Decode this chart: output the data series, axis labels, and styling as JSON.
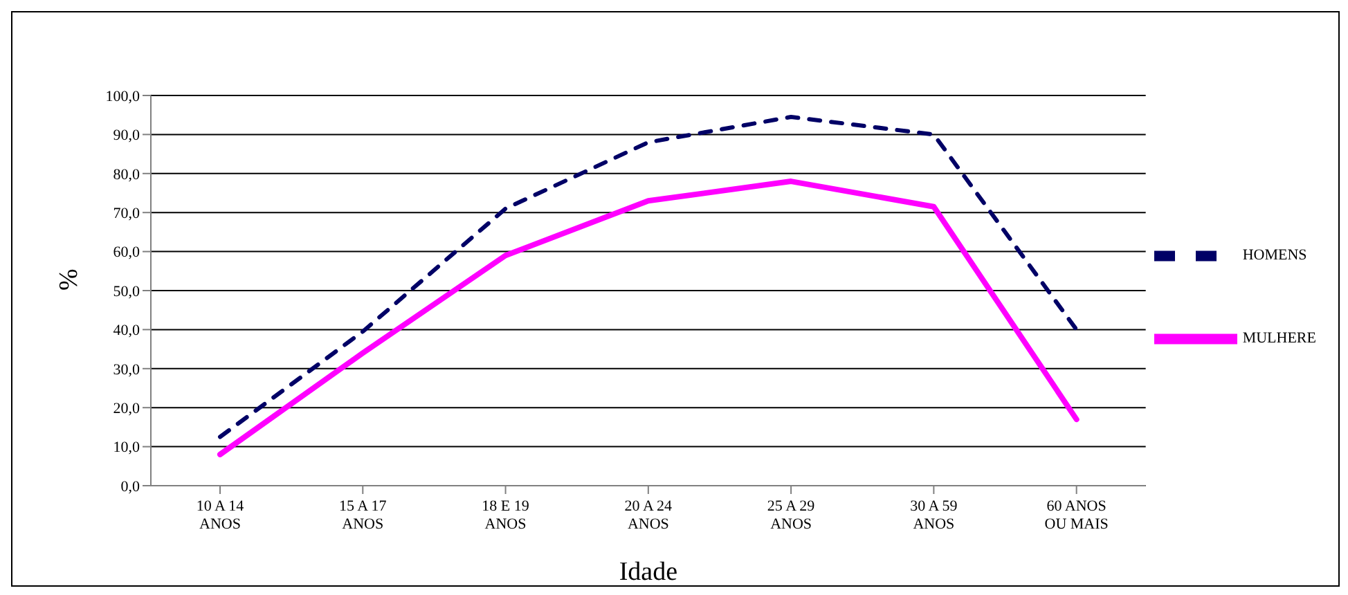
{
  "chart_data": {
    "type": "line",
    "xlabel": "Idade",
    "ylabel": "%",
    "categories": [
      "10 A 14\nANOS",
      "15 A 17\nANOS",
      "18 E 19\nANOS",
      "20 A 24\nANOS",
      "25 A 29\nANOS",
      "30 A 59\nANOS",
      "60 ANOS\nOU MAIS"
    ],
    "series": [
      {
        "name": "HOMENS",
        "color": "#000066",
        "line_style": "dashed",
        "values": [
          12.5,
          39.5,
          71,
          88,
          94.5,
          90,
          40
        ]
      },
      {
        "name": "MULHERE",
        "color": "#ff00ff",
        "line_style": "solid",
        "values": [
          8,
          34,
          59,
          73,
          78,
          71.5,
          17
        ]
      }
    ],
    "ylim": [
      0,
      100
    ],
    "yticks": [
      {
        "value": 0,
        "label": "0,0"
      },
      {
        "value": 10,
        "label": "10,0"
      },
      {
        "value": 20,
        "label": "20,0"
      },
      {
        "value": 30,
        "label": "30,0"
      },
      {
        "value": 40,
        "label": "40,0"
      },
      {
        "value": 50,
        "label": "50,0"
      },
      {
        "value": 60,
        "label": "60,0"
      },
      {
        "value": 70,
        "label": "70,0"
      },
      {
        "value": 80,
        "label": "80,0"
      },
      {
        "value": 90,
        "label": "90,0"
      },
      {
        "value": 100,
        "label": "100,0"
      }
    ],
    "grid": "y",
    "legend": "right",
    "marker": "none"
  }
}
